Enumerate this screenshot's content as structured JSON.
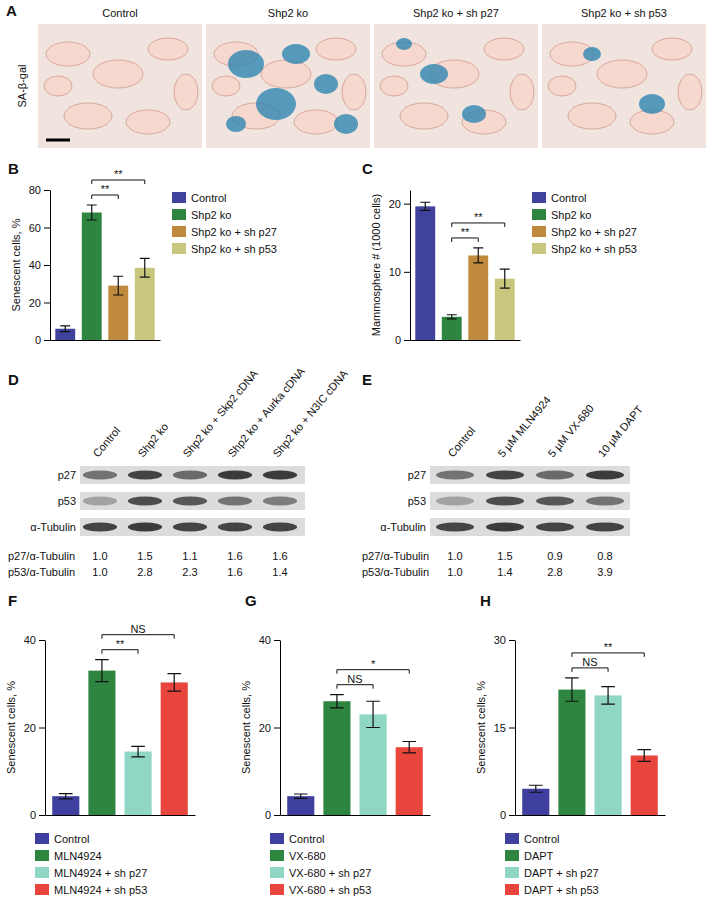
{
  "panel_a": {
    "title": "A",
    "row_label": "SA-β-gal",
    "columns": [
      "Control",
      "Shp2 ko",
      "Shp2 ko + sh p27",
      "Shp2 ko + sh p53"
    ]
  },
  "chart_data": [
    {
      "title": "B",
      "type": "bar",
      "y_label": "Senescent cells, %",
      "categories": [
        "Control",
        "Shp2 ko",
        "Shp2 ko + sh p27",
        "Shp2 ko + sh p53"
      ],
      "values": [
        6,
        68,
        29,
        38.5
      ],
      "errors": [
        1.5,
        4,
        5,
        5
      ],
      "colors": [
        "#41419e",
        "#2e8540",
        "#c08a3e",
        "#c9c77e"
      ],
      "ylim": [
        0,
        80
      ],
      "yticks": [
        0,
        20,
        40,
        60,
        80
      ],
      "tick_labels": "y",
      "legend": "right",
      "annotations": [
        {
          "between": [
            "Shp2 ko",
            "Shp2 ko + sh p27"
          ],
          "label": "**"
        },
        {
          "between": [
            "Shp2 ko",
            "Shp2 ko + sh p53"
          ],
          "label": "**"
        }
      ]
    },
    {
      "title": "C",
      "type": "bar",
      "y_label": "Mammosphere # (1000 cells)",
      "categories": [
        "Control",
        "Shp2 ko",
        "Shp2 ko + sh p27",
        "Shp2 ko + sh p53"
      ],
      "values": [
        19.6,
        3.4,
        12.4,
        9
      ],
      "errors": [
        0.6,
        0.3,
        1.1,
        1.4
      ],
      "colors": [
        "#41419e",
        "#2e8540",
        "#c08a3e",
        "#c9c77e"
      ],
      "ylim": [
        0,
        22
      ],
      "yticks": [
        0,
        10,
        20
      ],
      "tick_labels": "y",
      "legend": "right",
      "annotations": [
        {
          "between": [
            "Shp2 ko",
            "Shp2 ko + sh p27"
          ],
          "label": "**"
        },
        {
          "between": [
            "Shp2 ko",
            "Shp2 ko + sh p53"
          ],
          "label": "**"
        }
      ]
    },
    {
      "title": "F",
      "type": "bar",
      "y_label": "Senescent cells, %",
      "categories": [
        "Control",
        "MLN4924",
        "MLN4924 + sh p27",
        "MLN4924 + sh p53"
      ],
      "values": [
        4.3,
        33,
        14.5,
        30.3
      ],
      "errors": [
        0.6,
        2.5,
        1.2,
        2
      ],
      "colors": [
        "#3e3f9e",
        "#2e8540",
        "#8fd6c4",
        "#e8453c"
      ],
      "ylim": [
        0,
        40
      ],
      "yticks": [
        0,
        20,
        40
      ],
      "tick_labels": "y",
      "legend": "bottom",
      "annotations": [
        {
          "between": [
            "MLN4924",
            "MLN4924 + sh p27"
          ],
          "label": "**"
        },
        {
          "between": [
            "MLN4924",
            "MLN4924 + sh p53"
          ],
          "label": "NS"
        }
      ]
    },
    {
      "title": "G",
      "type": "bar",
      "y_label": "Senescent cells, %",
      "categories": [
        "Control",
        "VX-680",
        "VX-680 + sh p27",
        "VX-680 + sh p53"
      ],
      "values": [
        4.3,
        26,
        23,
        15.5
      ],
      "errors": [
        0.5,
        1.5,
        3,
        1.3
      ],
      "colors": [
        "#3e3f9e",
        "#2e8540",
        "#8fd6c4",
        "#e8453c"
      ],
      "ylim": [
        0,
        40
      ],
      "yticks": [
        0,
        20,
        40
      ],
      "tick_labels": "y",
      "legend": "bottom",
      "annotations": [
        {
          "between": [
            "VX-680",
            "VX-680 + sh p27"
          ],
          "label": "NS"
        },
        {
          "between": [
            "VX-680",
            "VX-680 + sh p53"
          ],
          "label": "*"
        }
      ]
    },
    {
      "title": "H",
      "type": "bar",
      "y_label": "Senescent cells, %",
      "categories": [
        "Control",
        "DAPT",
        "DAPT + sh p27",
        "DAPT + sh p53"
      ],
      "values": [
        4.5,
        21.5,
        20.5,
        10.2
      ],
      "errors": [
        0.6,
        2,
        1.5,
        1
      ],
      "colors": [
        "#3e3f9e",
        "#2e8540",
        "#8fd6c4",
        "#e8453c"
      ],
      "ylim": [
        0,
        30
      ],
      "yticks": [
        0,
        15,
        30
      ],
      "tick_labels": "y",
      "legend": "bottom",
      "annotations": [
        {
          "between": [
            "DAPT",
            "DAPT + sh p27"
          ],
          "label": "NS"
        },
        {
          "between": [
            "DAPT",
            "DAPT + sh p53"
          ],
          "label": "**"
        }
      ]
    }
  ],
  "blots": [
    {
      "title": "D",
      "lanes": [
        "Control",
        "Shp2 ko",
        "Shp2 ko + Skp2 cDNA",
        "Shp2 ko + Aurka cDNA",
        "Shp2 ko + N3IC cDNA"
      ],
      "bands": [
        "p27",
        "p53",
        "α-Tubulin"
      ],
      "ratios": [
        {
          "label": "p27/α-Tubulin",
          "values": [
            "1.0",
            "1.5",
            "1.1",
            "1.6",
            "1.6"
          ]
        },
        {
          "label": "p53/α-Tubulin",
          "values": [
            "1.0",
            "2.8",
            "2.3",
            "1.6",
            "1.4"
          ]
        }
      ]
    },
    {
      "title": "E",
      "lanes": [
        "Control",
        "5 µM MLN4924",
        "5 µM VX-680",
        "10 µM DAPT"
      ],
      "bands": [
        "p27",
        "p53",
        "α-Tubulin"
      ],
      "ratios": [
        {
          "label": "p27/α-Tubulin",
          "values": [
            "1.0",
            "1.5",
            "0.9",
            "0.8"
          ]
        },
        {
          "label": "p53/α-Tubulin",
          "values": [
            "1.0",
            "1.4",
            "2.8",
            "3.9"
          ]
        }
      ]
    }
  ]
}
